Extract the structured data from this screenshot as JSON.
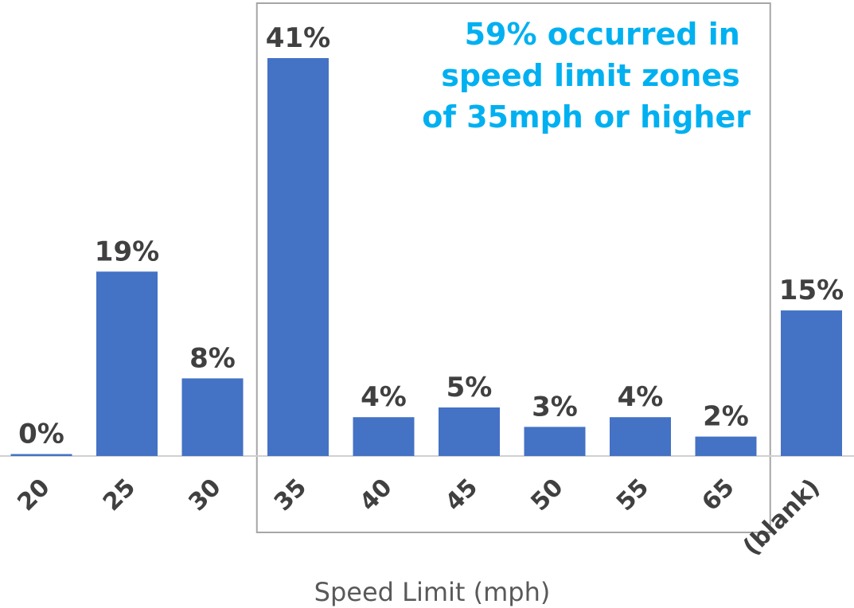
{
  "chart_data": {
    "type": "bar",
    "categories": [
      "20",
      "25",
      "30",
      "35",
      "40",
      "45",
      "50",
      "55",
      "65",
      "(blank)"
    ],
    "values": [
      0.2,
      19,
      8,
      41,
      4,
      5,
      3,
      4,
      2,
      15
    ],
    "data_labels": [
      "0%",
      "19%",
      "8%",
      "41%",
      "4%",
      "5%",
      "3%",
      "4%",
      "2%",
      "15%"
    ],
    "xlabel": "Speed Limit (mph)",
    "ylabel": "",
    "ylim": [
      0,
      42
    ],
    "bar_color": "#4472c4",
    "grid": false,
    "highlight": {
      "from_category": "35",
      "to_category": "65",
      "border_color": "#a6a6a6",
      "annotation_lines": [
        "59% occurred in",
        "speed limit zones",
        "of 35mph or higher"
      ],
      "annotation_color": "#00b0f0"
    }
  }
}
